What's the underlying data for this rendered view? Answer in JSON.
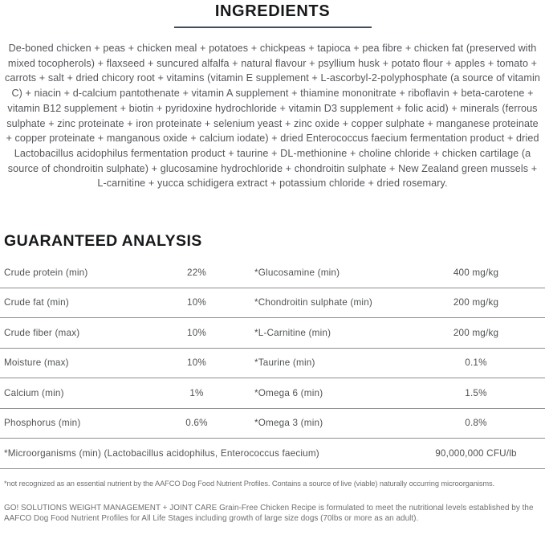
{
  "ingredients": {
    "title": "INGREDIENTS",
    "body": "De-boned chicken + peas + chicken meal + potatoes + chickpeas + tapioca + pea fibre + chicken fat (preserved with mixed tocopherols) + flaxseed + suncured alfalfa + natural flavour + psyllium husk + potato flour + apples + tomato + carrots + salt + dried chicory root + vitamins (vitamin E supplement + L-ascorbyl-2-polyphosphate (a source of vitamin C) + niacin + d-calcium pantothenate + vitamin A supplement + thiamine mononitrate + riboflavin + beta-carotene + vitamin B12 supplement + biotin + pyridoxine hydrochloride + vitamin D3 supplement + folic acid) + minerals (ferrous sulphate + zinc proteinate + iron proteinate + selenium yeast + zinc oxide + copper sulphate + manganese proteinate + copper proteinate + manganous oxide + calcium iodate) + dried Enterococcus faecium fermentation product + dried Lactobacillus acidophilus fermentation product + taurine + DL-methionine + choline chloride + chicken cartilage (a source of chondroitin sulphate) + glucosamine hydrochloride + chondroitin sulphate + New Zealand green mussels + L-carnitine + yucca schidigera extract + potassium chloride + dried rosemary."
  },
  "guaranteed_analysis": {
    "title": "GUARANTEED ANALYSIS",
    "rows": [
      {
        "left_label": "Crude protein (min)",
        "left_value": "22%",
        "right_label": "*Glucosamine (min)",
        "right_value": "400 mg/kg"
      },
      {
        "left_label": "Crude fat (min)",
        "left_value": "10%",
        "right_label": "*Chondroitin sulphate (min)",
        "right_value": "200 mg/kg"
      },
      {
        "left_label": "Crude fiber (max)",
        "left_value": "10%",
        "right_label": "*L-Carnitine (min)",
        "right_value": "200 mg/kg"
      },
      {
        "left_label": "Moisture (max)",
        "left_value": "10%",
        "right_label": "*Taurine (min)",
        "right_value": "0.1%"
      },
      {
        "left_label": "Calcium (min)",
        "left_value": "1%",
        "right_label": "*Omega 6 (min)",
        "right_value": "1.5%"
      },
      {
        "left_label": "Phosphorus (min)",
        "left_value": "0.6%",
        "right_label": "*Omega 3 (min)",
        "right_value": "0.8%"
      }
    ],
    "microorganisms_row": {
      "label": "*Microorganisms (min) (Lactobacillus acidophilus, Enterococcus faecium)",
      "value": "90,000,000 CFU/lb"
    },
    "footnote": "*not recognized as an essential nutrient by the AAFCO Dog Food Nutrient Profiles. Contains a source of live (viable) naturally occurring microorganisms."
  },
  "compliance_statement": "GO! SOLUTIONS WEIGHT MANAGEMENT + JOINT CARE Grain-Free Chicken Recipe is formulated to meet the nutritional levels established by the AAFCO Dog Food Nutrient Profiles for All Life Stages including growth of large size dogs (70lbs or more as an adult).",
  "colors": {
    "accent_rule": "#3f4e5e",
    "heading_text": "#17181a",
    "body_text": "#55565a",
    "table_divider": "#8f8f8f"
  }
}
